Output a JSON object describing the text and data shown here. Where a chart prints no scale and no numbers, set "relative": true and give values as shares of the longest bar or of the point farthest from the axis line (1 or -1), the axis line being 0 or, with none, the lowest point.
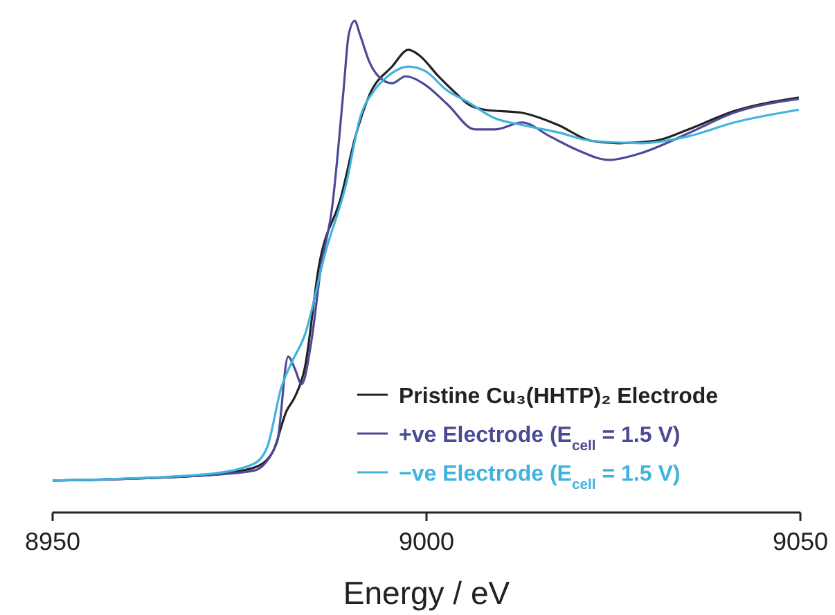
{
  "chart_data": {
    "type": "line",
    "relative": true,
    "xlabel": "Energy / eV",
    "xlim": [
      8950,
      9050
    ],
    "xticks": [
      8950,
      9000,
      9050
    ],
    "legend": "bottom right",
    "tick_labels": "x",
    "series": [
      {
        "name": "Pristine Cu₃(HHTP)₂ Electrode",
        "color": "#222222",
        "x": [
          8950,
          8970.7,
          8976.9,
          8979.4,
          8981.3,
          8982.4,
          8983.7,
          8985.6,
          8988.6,
          8990.5,
          8992.4,
          8995.4,
          8997.6,
          8999.1,
          9001.6,
          9004.1,
          9005.6,
          9007.8,
          9012.7,
          9017.6,
          9022,
          9025.7,
          9030.6,
          9035,
          9041.1,
          9049.8
        ],
        "values": [
          0.065,
          0.076,
          0.091,
          0.122,
          0.207,
          0.235,
          0.292,
          0.5,
          0.643,
          0.765,
          0.85,
          0.907,
          0.941,
          0.929,
          0.887,
          0.85,
          0.83,
          0.819,
          0.813,
          0.788,
          0.756,
          0.751,
          0.756,
          0.779,
          0.816,
          0.844
        ]
      },
      {
        "name": "+ve Electrode (E$_{cell}$ = 1.5 V)",
        "color": "#4b4a96",
        "x": [
          8950,
          8970.7,
          8976.9,
          8980,
          8981.5,
          8982.4,
          8983.3,
          8984.6,
          8985.9,
          8987.4,
          8988.9,
          8989.6,
          8990.4,
          8991.1,
          8992.4,
          8994.3,
          8995.4,
          8997.2,
          8999.8,
          9002.8,
          9006.5,
          9009.1,
          9012.8,
          9016.5,
          9020.2,
          9024.4,
          9028.7,
          9035,
          9041.1,
          9049.8
        ],
        "values": [
          0.065,
          0.076,
          0.085,
          0.142,
          0.317,
          0.292,
          0.261,
          0.348,
          0.5,
          0.623,
          0.858,
          0.972,
          1,
          0.972,
          0.915,
          0.878,
          0.873,
          0.887,
          0.87,
          0.83,
          0.779,
          0.779,
          0.793,
          0.765,
          0.737,
          0.717,
          0.731,
          0.771,
          0.813,
          0.841
        ]
      },
      {
        "name": "−ve Electrode (E$_{cell}$ = 1.5 V)",
        "color": "#3fb3dd",
        "x": [
          8950,
          8970.7,
          8976.9,
          8978.7,
          8980.6,
          8981.9,
          8983.7,
          8986.5,
          8989.3,
          8991.1,
          8993,
          8994.8,
          8997.6,
          8999.8,
          9002.8,
          9005.4,
          9009.1,
          9012.8,
          9017.6,
          9022,
          9028.7,
          9035,
          9041.1,
          9049.8
        ],
        "values": [
          0.065,
          0.078,
          0.099,
          0.133,
          0.255,
          0.303,
          0.36,
          0.53,
          0.671,
          0.802,
          0.858,
          0.887,
          0.907,
          0.898,
          0.858,
          0.836,
          0.802,
          0.788,
          0.773,
          0.756,
          0.751,
          0.765,
          0.793,
          0.819
        ]
      }
    ]
  }
}
